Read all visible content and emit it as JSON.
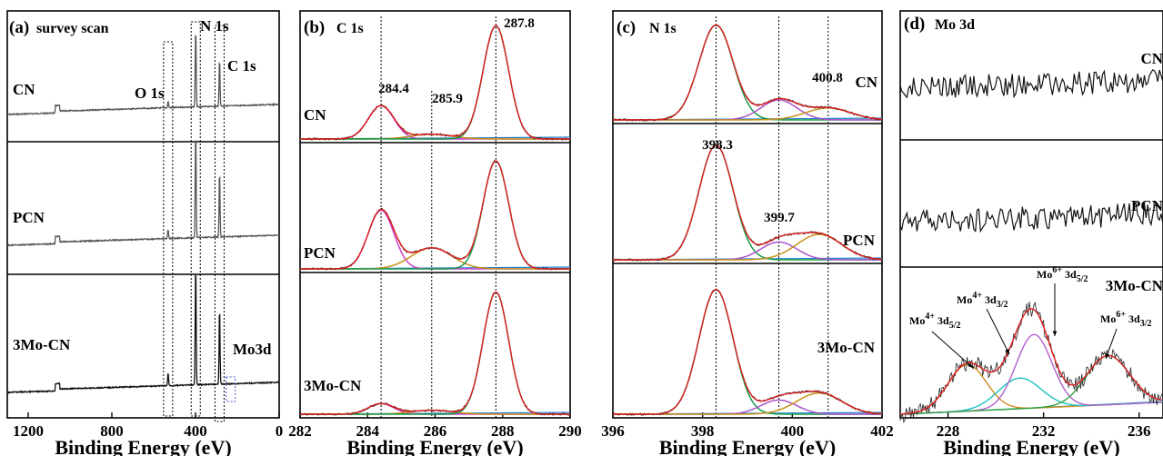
{
  "chart_data": [
    {
      "id": "a",
      "type": "line",
      "panel_label": "(a)",
      "title": "survey scan",
      "xlabel": "Binding Energy (eV)",
      "xlim": [
        1300,
        0
      ],
      "xticks": [
        1200,
        800,
        400,
        0
      ],
      "peak_labels": [
        {
          "text": "O 1s",
          "x": 531
        },
        {
          "text": "N 1s",
          "x": 399
        },
        {
          "text": "C 1s",
          "x": 285
        },
        {
          "text": "Mo3d",
          "x": 232
        }
      ],
      "series": [
        {
          "name": "CN",
          "peaks": [
            {
              "x": 531,
              "h": 0.06
            },
            {
              "x": 399,
              "h": 0.75
            },
            {
              "x": 285,
              "h": 0.45
            }
          ]
        },
        {
          "name": "PCN",
          "peaks": [
            {
              "x": 531,
              "h": 0.08
            },
            {
              "x": 399,
              "h": 0.9
            },
            {
              "x": 285,
              "h": 0.55
            }
          ]
        },
        {
          "name": "3Mo-CN",
          "peaks": [
            {
              "x": 531,
              "h": 0.1
            },
            {
              "x": 399,
              "h": 0.95
            },
            {
              "x": 285,
              "h": 0.6
            }
          ]
        }
      ]
    },
    {
      "id": "b",
      "type": "line",
      "panel_label": "(b)",
      "title": "C 1s",
      "xlabel": "Binding Energy (eV)",
      "xlim": [
        282,
        290
      ],
      "xticks": [
        282,
        284,
        286,
        288,
        290
      ],
      "reference_lines": [
        284.4,
        285.9,
        287.8
      ],
      "peak_labels": [
        "284.4",
        "285.9",
        "287.8"
      ],
      "series": [
        {
          "name": "CN",
          "components": [
            {
              "center": 284.4,
              "height": 0.28,
              "color": "#cc44cc"
            },
            {
              "center": 285.9,
              "height": 0.04,
              "color": "#c8901a"
            },
            {
              "center": 287.8,
              "height": 0.95,
              "color": "#1a9a4a"
            }
          ]
        },
        {
          "name": "PCN",
          "components": [
            {
              "center": 284.4,
              "height": 0.5,
              "color": "#cc44cc"
            },
            {
              "center": 285.9,
              "height": 0.18,
              "color": "#c8901a"
            },
            {
              "center": 287.8,
              "height": 0.92,
              "color": "#1a9a4a"
            }
          ]
        },
        {
          "name": "3Mo-CN",
          "components": [
            {
              "center": 284.4,
              "height": 0.08,
              "color": "#cc44cc"
            },
            {
              "center": 285.9,
              "height": 0.03,
              "color": "#c8901a"
            },
            {
              "center": 287.8,
              "height": 0.92,
              "color": "#1a9a4a"
            }
          ]
        }
      ]
    },
    {
      "id": "c",
      "type": "line",
      "panel_label": "(c)",
      "title": "N 1s",
      "xlabel": "Binding Energy (eV)",
      "xlim": [
        396,
        402
      ],
      "xticks": [
        396,
        398,
        400,
        402
      ],
      "reference_lines": [
        398.3,
        399.7,
        400.8
      ],
      "peak_labels": [
        "398.3",
        "399.7",
        "400.8"
      ],
      "series": [
        {
          "name": "CN",
          "components": [
            {
              "center": 398.3,
              "height": 0.95,
              "color": "#1a9a4a"
            },
            {
              "center": 399.7,
              "height": 0.2,
              "color": "#aa55cc"
            },
            {
              "center": 400.8,
              "height": 0.12,
              "color": "#c8901a"
            }
          ]
        },
        {
          "name": "PCN",
          "components": [
            {
              "center": 398.3,
              "height": 0.9,
              "color": "#1a9a4a"
            },
            {
              "center": 399.7,
              "height": 0.14,
              "color": "#aa55cc"
            },
            {
              "center": 400.6,
              "height": 0.2,
              "color": "#c8901a"
            }
          ]
        },
        {
          "name": "3Mo-CN",
          "components": [
            {
              "center": 398.3,
              "height": 0.88,
              "color": "#1a9a4a"
            },
            {
              "center": 399.7,
              "height": 0.1,
              "color": "#aa55cc"
            },
            {
              "center": 400.6,
              "height": 0.15,
              "color": "#c8901a"
            }
          ]
        }
      ]
    },
    {
      "id": "d",
      "type": "line",
      "panel_label": "(d)",
      "title": "Mo 3d",
      "xlabel": "Binding Energy (eV)",
      "xlim": [
        226,
        237
      ],
      "xticks": [
        228,
        232,
        236
      ],
      "series": [
        {
          "name": "CN"
        },
        {
          "name": "PCN"
        },
        {
          "name": "3Mo-CN",
          "components": [
            {
              "center": 228.8,
              "height": 0.38,
              "color": "#d08a20"
            },
            {
              "center": 231.0,
              "height": 0.25,
              "color": "#20c0c0"
            },
            {
              "center": 231.6,
              "height": 0.6,
              "color": "#b060d0"
            },
            {
              "center": 234.7,
              "height": 0.4,
              "color": "#30a040"
            }
          ],
          "annotations": [
            {
              "base": "Mo",
              "sup": "4+",
              "main": " 3d",
              "sub": "5/2"
            },
            {
              "base": "Mo",
              "sup": "4+",
              "main": " 3d",
              "sub": "3/2"
            },
            {
              "base": "Mo",
              "sup": "6+",
              "main": " 3d",
              "sub": "5/2"
            },
            {
              "base": "Mo",
              "sup": "6+",
              "main": " 3d",
              "sub": "3/2"
            }
          ]
        }
      ]
    }
  ]
}
